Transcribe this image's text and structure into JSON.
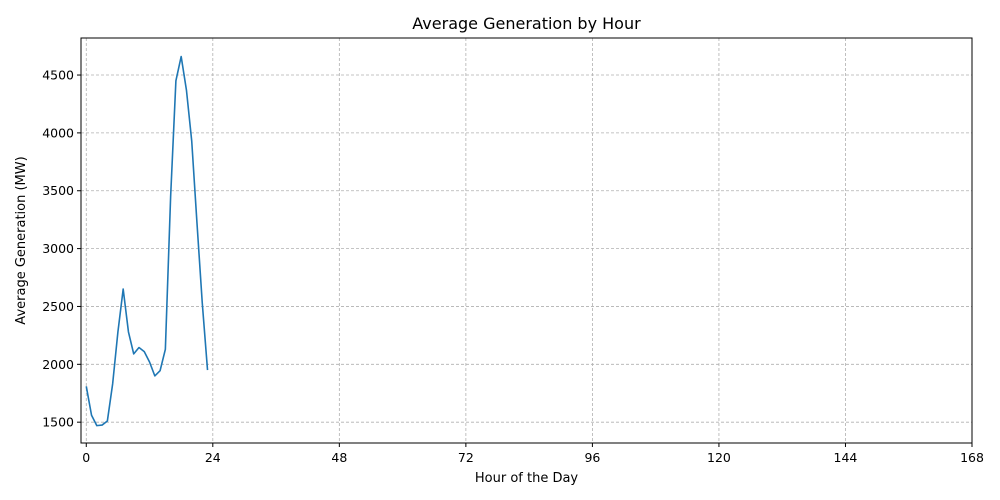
{
  "chart_data": {
    "type": "line",
    "title": "Average Generation by Hour",
    "xlabel": "Hour of the Day",
    "ylabel": "Average Generation (MW)",
    "xlim": [
      -1,
      168
    ],
    "ylim": [
      1320,
      4820
    ],
    "xticks": [
      0,
      24,
      48,
      72,
      96,
      120,
      144,
      168
    ],
    "yticks": [
      1500,
      2000,
      2500,
      3000,
      3500,
      4000,
      4500
    ],
    "grid": true,
    "line_color": "#1f77b4",
    "series": [
      {
        "x": [
          0,
          1,
          2,
          3,
          4,
          5,
          6,
          7,
          8,
          9,
          10,
          11,
          12,
          13,
          14,
          15,
          16,
          17,
          18,
          19,
          20,
          21,
          22,
          23
        ],
        "values": [
          1810,
          1560,
          1470,
          1475,
          1510,
          1830,
          2280,
          2650,
          2280,
          2090,
          2145,
          2110,
          2020,
          1900,
          1945,
          2130,
          3450,
          4450,
          4660,
          4370,
          3930,
          3220,
          2530,
          1950
        ]
      }
    ]
  }
}
